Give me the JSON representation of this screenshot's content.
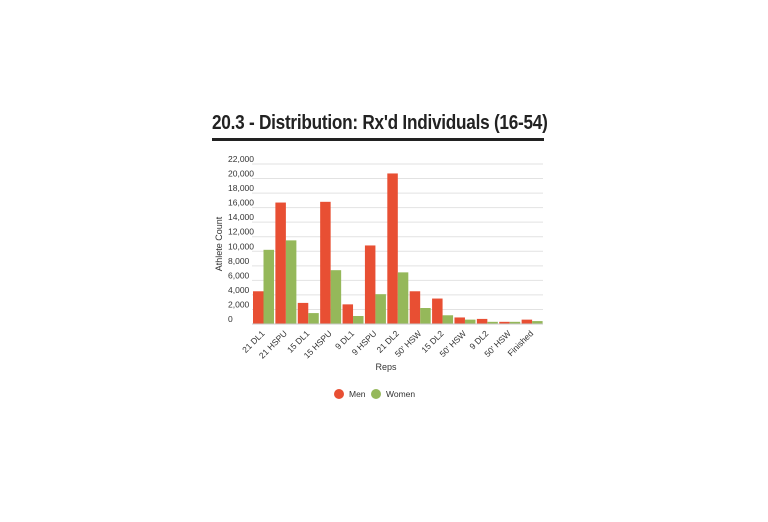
{
  "chart_data": {
    "type": "bar",
    "title": "20.3 - Distribution: Rx'd Individuals (16-54)",
    "xlabel": "Reps",
    "ylabel": "Athlete Count",
    "ylim": [
      0,
      22000
    ],
    "yticks": [
      "0",
      "2,000",
      "4,000",
      "6,000",
      "8,000",
      "10,000",
      "12,000",
      "14,000",
      "16,000",
      "18,000",
      "20,000",
      "22,000"
    ],
    "categories": [
      "21 DL1",
      "21 HSPU",
      "15 DL1",
      "15 HSPU",
      "9 DL1",
      "9 HSPU",
      "21 DL2",
      "50' HSW",
      "15 DL2",
      "50' HSW",
      "9 DL2",
      "50' HSW",
      "Finished"
    ],
    "series": [
      {
        "name": "Men",
        "color": "#e84f33",
        "values": [
          4500,
          16700,
          2900,
          16800,
          2700,
          10800,
          20700,
          4500,
          3500,
          900,
          700,
          300,
          600
        ]
      },
      {
        "name": "Women",
        "color": "#95b85a",
        "values": [
          10200,
          11500,
          1500,
          7400,
          1100,
          4100,
          7100,
          2200,
          1200,
          600,
          300,
          300,
          400
        ]
      }
    ],
    "grid": true,
    "legend_position": "bottom"
  }
}
